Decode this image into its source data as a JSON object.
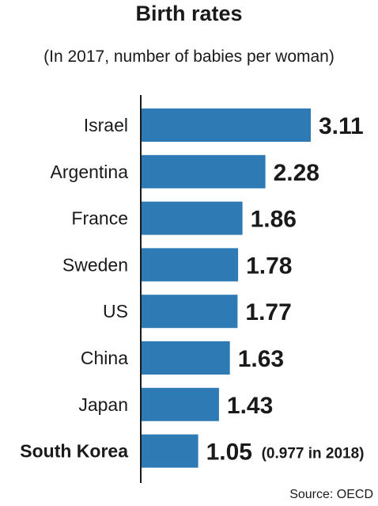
{
  "chart_data": {
    "type": "bar",
    "orientation": "horizontal",
    "title": "Birth rates",
    "subtitle": "(In 2017, number of babies per woman)",
    "categories": [
      "Israel",
      "Argentina",
      "France",
      "Sweden",
      "US",
      "China",
      "Japan",
      "South Korea"
    ],
    "values": [
      3.11,
      2.28,
      1.86,
      1.78,
      1.77,
      1.63,
      1.43,
      1.05
    ],
    "value_labels": [
      "3.11",
      "2.28",
      "1.86",
      "1.78",
      "1.77",
      "1.63",
      "1.43",
      "1.05"
    ],
    "highlight": "South Korea",
    "annotation": "(0.977 in 2018)",
    "bar_color": "#2d7ab5",
    "grid": false,
    "xlim": [
      0,
      3.11
    ]
  },
  "source": "Source: OECD"
}
